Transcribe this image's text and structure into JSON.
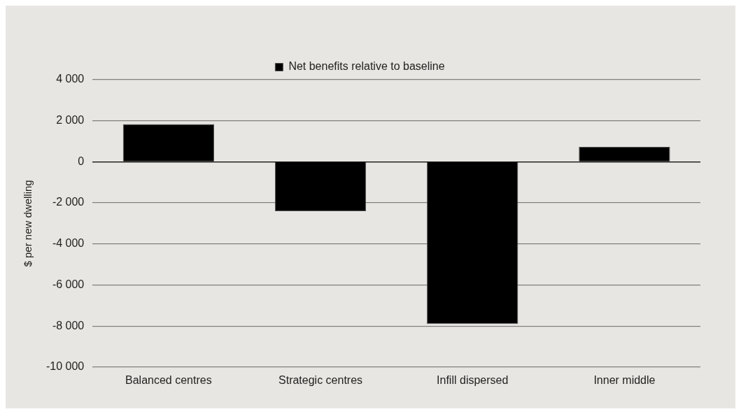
{
  "chart_data": {
    "type": "bar",
    "ylabel": "$ per new dwelling",
    "categories": [
      "Balanced centres",
      "Strategic centres",
      "Infill dispersed",
      "Inner middle"
    ],
    "series": [
      {
        "name": "Net benefits relative to baseline",
        "color": "#000000",
        "values": [
          1840,
          -2410,
          -7900,
          730
        ]
      }
    ],
    "ylim": [
      -10000,
      4000
    ],
    "yticks": [
      {
        "value": -10000,
        "label": "-10 000"
      },
      {
        "value": -8000,
        "label": "-8 000"
      },
      {
        "value": -6000,
        "label": "-6 000"
      },
      {
        "value": -4000,
        "label": "-4 000"
      },
      {
        "value": -2000,
        "label": "-2 000"
      },
      0,
      {
        "value": 2000,
        "label": "2 000"
      },
      {
        "value": 4000,
        "label": "4 000"
      }
    ],
    "grid": "y",
    "legend": "top"
  }
}
